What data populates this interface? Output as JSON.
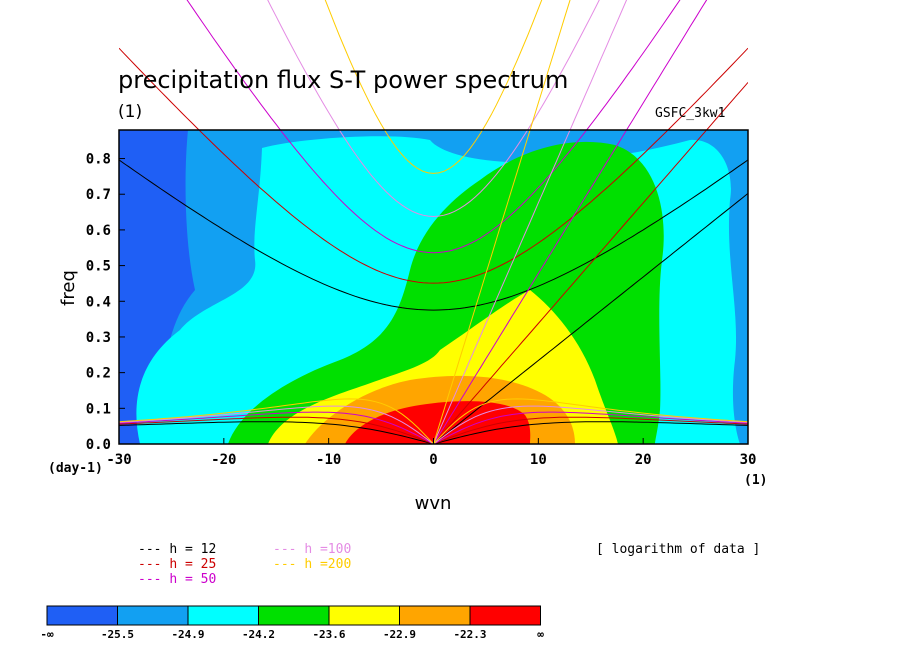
{
  "title": "precipitation flux S-T power spectrum",
  "title_units": "(1)",
  "source_label": "GSFC_3kw1",
  "note": "[ logarithm of data ]",
  "chart_data": {
    "type": "contour",
    "title": "precipitation flux S-T power spectrum",
    "xlabel": "wvn",
    "ylabel": "freq",
    "x_units": "(1)",
    "y_units": "(day-1)",
    "xlim": [
      -30,
      30
    ],
    "ylim": [
      0,
      0.88
    ],
    "xticks": [
      "-30",
      "-20",
      "-10",
      "0",
      "10",
      "20",
      "30"
    ],
    "yticks": [
      "0.0",
      "0.1",
      "0.2",
      "0.3",
      "0.4",
      "0.5",
      "0.6",
      "0.7",
      "0.8"
    ],
    "levels": [
      "-∞",
      "-25.5",
      "-24.9",
      "-24.2",
      "-23.6",
      "-22.9",
      "-22.3",
      "∞"
    ],
    "fill_colors": [
      "#1f5ff5",
      "#12a0f2",
      "#00ffff",
      "#00e000",
      "#ffff00",
      "#ffa500",
      "#ff0000"
    ],
    "dispersion_curves": [
      {
        "name": "h = 12",
        "color": "#000000",
        "h": 12
      },
      {
        "name": "h = 25",
        "color": "#cc0000",
        "h": 25
      },
      {
        "name": "h = 50",
        "color": "#cc00cc",
        "h": 50
      },
      {
        "name": "h =100",
        "color": "#e48ce4",
        "h": 100
      },
      {
        "name": "h =200",
        "color": "#ffcc00",
        "h": 200
      }
    ]
  }
}
